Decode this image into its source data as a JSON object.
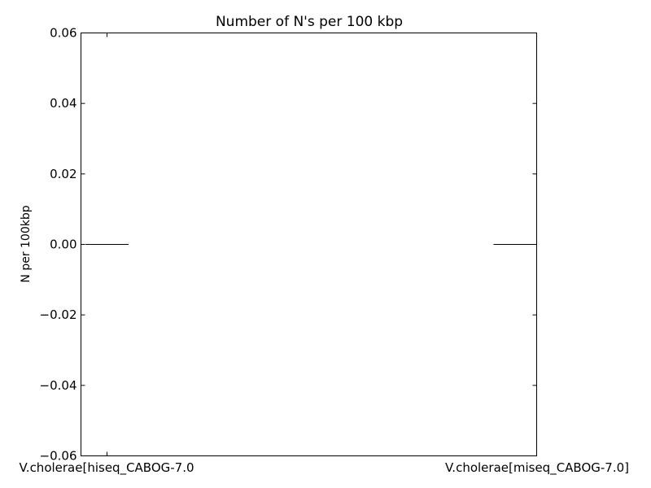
{
  "chart_data": {
    "type": "bar",
    "title": "Number of N's per 100 kbp",
    "xlabel": "",
    "ylabel": "N per 100kbp",
    "categories": [
      "V.cholerae[hiseq_CABOG-7.0",
      "V.cholerae[miseq_CABOG-7.0]"
    ],
    "values": [
      0.0,
      0.0
    ],
    "ylim": [
      -0.06,
      0.06
    ],
    "yticks": [
      -0.06,
      -0.04,
      -0.02,
      0.0,
      0.02,
      0.04,
      0.06
    ],
    "ytick_labels": [
      "−0.06",
      "−0.04",
      "−0.02",
      "0.00",
      "0.02",
      "0.04",
      "0.06"
    ],
    "grid": false,
    "legend": "none",
    "bar_color": "#000000"
  }
}
